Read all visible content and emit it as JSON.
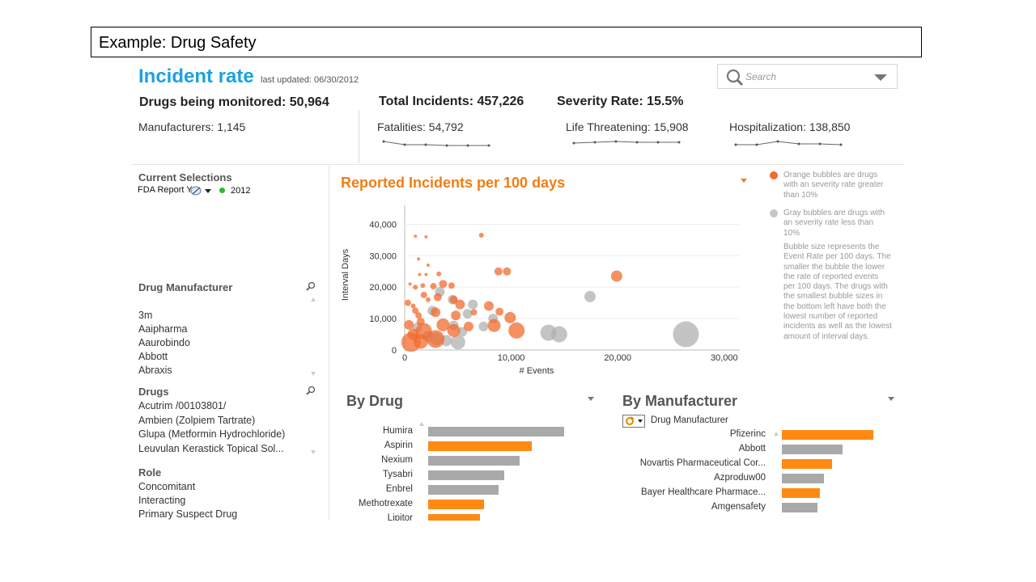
{
  "slide": {
    "title": "Example:  Drug Safety"
  },
  "header": {
    "title": "Incident rate",
    "last_updated": "last updated: 06/30/2012",
    "search_placeholder": "Search",
    "drugs_monitored": "Drugs being monitored: 50,964",
    "total_incidents": "Total Incidents: 457,226",
    "severity_rate": "Severity Rate: 15.5%",
    "manufacturers": "Manufacturers: 1,145",
    "fatalities": "Fatalities: 54,792",
    "life_threatening": "Life Threatening: 15,908",
    "hospitalization": "Hospitalization: 138,850"
  },
  "sidebar": {
    "current_selections_title": "Current Selections",
    "selection_field": "FDA Report Y",
    "selection_value": "2012",
    "drug_manufacturer_title": "Drug Manufacturer",
    "manufacturers": [
      "3m",
      "Aaipharma",
      "Aaurobindo",
      "Abbott",
      "Abraxis"
    ],
    "drugs_title": "Drugs",
    "drugs": [
      "Acutrim /00103801/",
      "Ambien (Zolpiem Tartrate)",
      "Glupa (Metformin Hydrochloride)",
      "Leuvulan Kerastick Topical Sol..."
    ],
    "role_title": "Role",
    "roles": [
      "Concomitant",
      "Interacting",
      "Primary Suspect Drug"
    ]
  },
  "colors": {
    "accent_blue": "#1ba1e2",
    "orange": "#f07e14",
    "bubble_orange": "#f26b2f",
    "gray": "#b0b0b0",
    "bar_orange": "#ff8a12",
    "bar_gray": "#a9a9a9"
  },
  "legend": {
    "orange_text": "Orange bubbles are drugs with an severity rate greater than 10%",
    "gray_text": "Gray bubbles are drugs with an severity rate less than 10%",
    "size_text": "Bubble size represents the Event Rate per 100 days. The smaller the bubble the lower the rate of reported events per 100 days. The drugs with the smallest bubble sizes in the bottom left have both the lowest number of reported incidents as well as the lowest amount of interval days."
  },
  "chart_data": [
    {
      "type": "scatter",
      "title": "Reported Incidents per 100 days",
      "xlabel": "# Events",
      "ylabel": "Interval Days",
      "xlim": [
        0,
        31000
      ],
      "ylim": [
        0,
        45000
      ],
      "xticks": [
        "0",
        "10,000",
        "20,000",
        "30,000"
      ],
      "yticks": [
        "0",
        "10,000",
        "20,000",
        "30,000",
        "40,000"
      ],
      "series": [
        {
          "name": "Orange",
          "points": [
            [
              7200,
              36500,
              3
            ],
            [
              2000,
              36000,
              2
            ],
            [
              1000,
              36200,
              2
            ],
            [
              1300,
              29000,
              2
            ],
            [
              2200,
              27000,
              2
            ],
            [
              2000,
              24000,
              2
            ],
            [
              1400,
              24000,
              2
            ],
            [
              3200,
              24200,
              3
            ],
            [
              8800,
              25000,
              5
            ],
            [
              9600,
              25000,
              5
            ],
            [
              19900,
              23500,
              7
            ],
            [
              3600,
              21000,
              5
            ],
            [
              4400,
              20500,
              4
            ],
            [
              1700,
              20500,
              3
            ],
            [
              2700,
              20300,
              4
            ],
            [
              500,
              21000,
              2
            ],
            [
              1000,
              20000,
              3
            ],
            [
              1800,
              17500,
              4
            ],
            [
              3100,
              16800,
              5
            ],
            [
              4600,
              16000,
              5
            ],
            [
              2200,
              16000,
              3
            ],
            [
              5200,
              14500,
              6
            ],
            [
              7900,
              14000,
              6
            ],
            [
              8900,
              12200,
              5
            ],
            [
              6500,
              12000,
              4
            ],
            [
              2900,
              12000,
              6
            ],
            [
              1000,
              12500,
              4
            ],
            [
              4800,
              11000,
              6
            ],
            [
              9900,
              10300,
              7
            ],
            [
              10500,
              6200,
              10
            ],
            [
              8400,
              7800,
              8
            ],
            [
              3600,
              8000,
              8
            ],
            [
              6000,
              7500,
              6
            ],
            [
              4600,
              6200,
              8
            ],
            [
              1800,
              6000,
              10
            ],
            [
              2900,
              3500,
              11
            ],
            [
              1500,
              2700,
              9
            ],
            [
              600,
              2500,
              12
            ],
            [
              800,
              5000,
              7
            ],
            [
              1500,
              9000,
              5
            ],
            [
              400,
              8000,
              6
            ],
            [
              300,
              15000,
              4
            ],
            [
              800,
              14000,
              3
            ],
            [
              1300,
              11000,
              4
            ]
          ]
        },
        {
          "name": "Gray",
          "points": [
            [
              26400,
              5000,
              16
            ],
            [
              14500,
              5000,
              10
            ],
            [
              13500,
              5500,
              10
            ],
            [
              17400,
              17000,
              7
            ],
            [
              6400,
              14500,
              6
            ],
            [
              5900,
              11500,
              6
            ],
            [
              8300,
              10000,
              6
            ],
            [
              7400,
              7500,
              6
            ],
            [
              4600,
              7800,
              6
            ],
            [
              4500,
              16000,
              6
            ],
            [
              3300,
              18500,
              6
            ],
            [
              2600,
              12500,
              6
            ],
            [
              5000,
              2500,
              9
            ],
            [
              3900,
              3000,
              7
            ],
            [
              3000,
              3500,
              8
            ],
            [
              2200,
              4300,
              7
            ],
            [
              5400,
              5800,
              6
            ],
            [
              1200,
              7200,
              6
            ]
          ]
        }
      ]
    },
    {
      "type": "bar",
      "title": "By Drug",
      "categories": [
        "Humira",
        "Aspirin",
        "Nexium",
        "Tysabri",
        "Enbrel",
        "Methotrexate",
        "Lipitor"
      ],
      "values": [
        100,
        76,
        67,
        56,
        52,
        41,
        38
      ],
      "colors": [
        "gray",
        "orange",
        "gray",
        "gray",
        "gray",
        "orange",
        "orange"
      ]
    },
    {
      "type": "bar",
      "title": "By Manufacturer",
      "filter_label": "Drug Manufacturer",
      "categories": [
        "Pfizerinc",
        "Abbott",
        "Novartis Pharmaceutical Cor...",
        "Azproduw00",
        "Bayer Healthcare Pharmace...",
        "Amgensafety"
      ],
      "values": [
        100,
        66,
        55,
        46,
        42,
        39
      ],
      "colors": [
        "orange",
        "gray",
        "orange",
        "gray",
        "orange",
        "gray"
      ]
    }
  ]
}
